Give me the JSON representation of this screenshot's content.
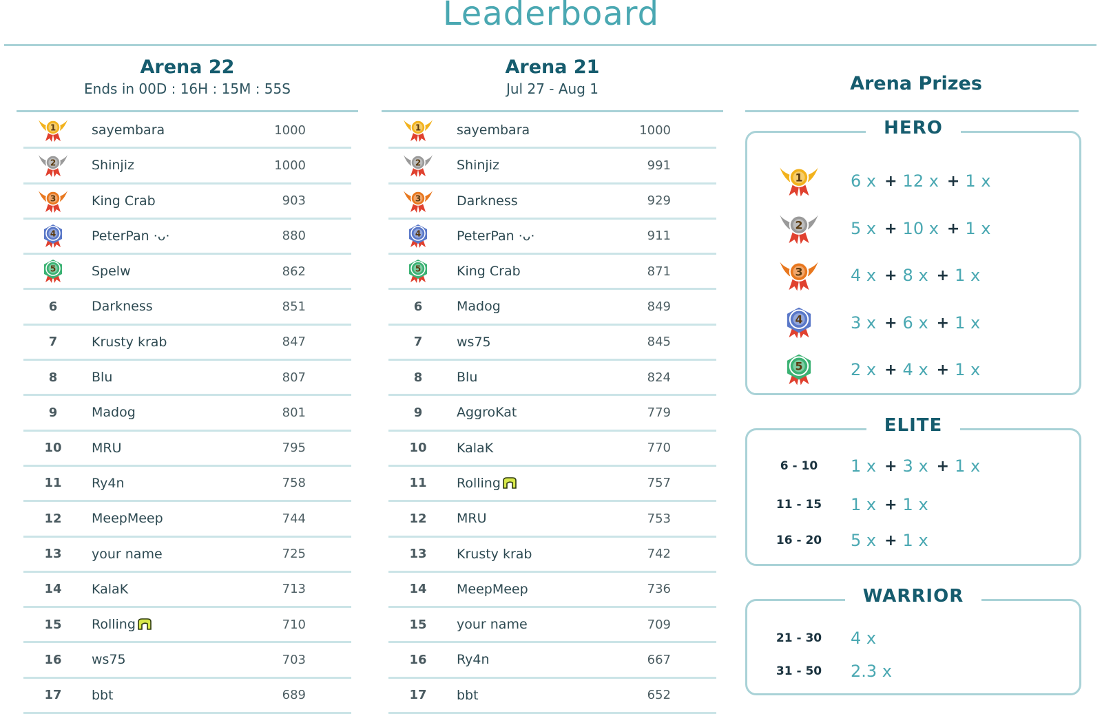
{
  "title": "Leaderboard",
  "arena_current": {
    "title": "Arena 22",
    "subtitle": "Ends in 00D : 16H : 15M : 55S",
    "rows": [
      {
        "rank": "1",
        "name": "sayembara",
        "score": "1000",
        "medal": "gold-medal"
      },
      {
        "rank": "2",
        "name": "Shinjiz",
        "score": "1000",
        "medal": "silver-medal"
      },
      {
        "rank": "3",
        "name": "King Crab",
        "score": "903",
        "medal": "bronze-medal"
      },
      {
        "rank": "4",
        "name": "PeterPan ·ᴗ·",
        "score": "880",
        "medal": "blue-medal"
      },
      {
        "rank": "5",
        "name": "Spelw",
        "score": "862",
        "medal": "green-medal"
      },
      {
        "rank": "6",
        "name": "Darkness",
        "score": "851"
      },
      {
        "rank": "7",
        "name": "Krusty krab",
        "score": "847"
      },
      {
        "rank": "8",
        "name": "Blu",
        "score": "807"
      },
      {
        "rank": "9",
        "name": "Madog",
        "score": "801"
      },
      {
        "rank": "10",
        "name": "MRU",
        "score": "795"
      },
      {
        "rank": "11",
        "name": "Ry4n",
        "score": "758"
      },
      {
        "rank": "12",
        "name": "MeepMeep",
        "score": "744"
      },
      {
        "rank": "13",
        "name": "your name",
        "score": "725"
      },
      {
        "rank": "14",
        "name": "KalaK",
        "score": "713"
      },
      {
        "rank": "15",
        "name": "Rolling",
        "score": "710",
        "mark": true
      },
      {
        "rank": "16",
        "name": "ws75",
        "score": "703"
      },
      {
        "rank": "17",
        "name": "bbt",
        "score": "689"
      }
    ]
  },
  "arena_previous": {
    "title": "Arena 21",
    "subtitle": "Jul 27 - Aug 1",
    "rows": [
      {
        "rank": "1",
        "name": "sayembara",
        "score": "1000",
        "medal": "gold-medal"
      },
      {
        "rank": "2",
        "name": "Shinjiz",
        "score": "991",
        "medal": "silver-medal"
      },
      {
        "rank": "3",
        "name": "Darkness",
        "score": "929",
        "medal": "bronze-medal"
      },
      {
        "rank": "4",
        "name": "PeterPan ·ᴗ·",
        "score": "911",
        "medal": "blue-medal"
      },
      {
        "rank": "5",
        "name": "King Crab",
        "score": "871",
        "medal": "green-medal"
      },
      {
        "rank": "6",
        "name": "Madog",
        "score": "849"
      },
      {
        "rank": "7",
        "name": "ws75",
        "score": "845"
      },
      {
        "rank": "8",
        "name": "Blu",
        "score": "824"
      },
      {
        "rank": "9",
        "name": "AggroKat",
        "score": "779"
      },
      {
        "rank": "10",
        "name": "KalaK",
        "score": "770"
      },
      {
        "rank": "11",
        "name": "Rolling",
        "score": "757",
        "mark": true
      },
      {
        "rank": "12",
        "name": "MRU",
        "score": "753"
      },
      {
        "rank": "13",
        "name": "Krusty krab",
        "score": "742"
      },
      {
        "rank": "14",
        "name": "MeepMeep",
        "score": "736"
      },
      {
        "rank": "15",
        "name": "your name",
        "score": "709"
      },
      {
        "rank": "16",
        "name": "Ry4n",
        "score": "667"
      },
      {
        "rank": "17",
        "name": "bbt",
        "score": "652"
      }
    ]
  },
  "prizes": {
    "title": "Arena Prizes",
    "tiers": [
      {
        "name": "HERO",
        "rows": [
          {
            "medal": "gold-medal",
            "items": [
              {
                "count": "6 x",
                "icon": "orb-icon"
              },
              {
                "count": "12 x",
                "icon": "gem-icon"
              },
              {
                "count": "1 x",
                "icon": "coin-icon"
              }
            ]
          },
          {
            "medal": "silver-medal",
            "items": [
              {
                "count": "5 x",
                "icon": "orb-icon"
              },
              {
                "count": "10 x",
                "icon": "gem-icon"
              },
              {
                "count": "1 x",
                "icon": "coin-icon"
              }
            ]
          },
          {
            "medal": "bronze-medal",
            "items": [
              {
                "count": "4 x",
                "icon": "orb-icon"
              },
              {
                "count": "8 x",
                "icon": "gem-icon"
              },
              {
                "count": "1 x",
                "icon": "coin-icon"
              }
            ]
          },
          {
            "medal": "blue-medal",
            "items": [
              {
                "count": "3 x",
                "icon": "orb-icon"
              },
              {
                "count": "6 x",
                "icon": "gem-icon"
              },
              {
                "count": "1 x",
                "icon": "coin-icon"
              }
            ]
          },
          {
            "medal": "green-medal",
            "items": [
              {
                "count": "2 x",
                "icon": "orb-icon"
              },
              {
                "count": "4 x",
                "icon": "gem-icon"
              },
              {
                "count": "1 x",
                "icon": "coin-icon"
              }
            ]
          }
        ]
      },
      {
        "name": "ELITE",
        "rows": [
          {
            "label": "6 - 10",
            "items": [
              {
                "count": "1 x",
                "icon": "orb-icon"
              },
              {
                "count": "3 x",
                "icon": "gem-icon"
              },
              {
                "count": "1 x",
                "icon": "coin-icon"
              }
            ]
          },
          {
            "label": "11 - 15",
            "items": [
              {
                "count": "1 x",
                "icon": "orb-icon"
              },
              {
                "count": "1 x",
                "icon": "coin-icon"
              }
            ]
          },
          {
            "label": "16 - 20",
            "items": [
              {
                "count": "5 x",
                "icon": "gem-icon"
              },
              {
                "count": "1 x",
                "icon": "coin-icon"
              }
            ]
          }
        ]
      },
      {
        "name": "WARRIOR",
        "rows": [
          {
            "label": "21 - 30",
            "items": [
              {
                "count": "4 x",
                "icon": "gem-icon"
              }
            ]
          },
          {
            "label": "31 - 50",
            "items": [
              {
                "count": "2.3 x",
                "icon": "gem-icon"
              }
            ]
          }
        ]
      }
    ]
  },
  "colors": {
    "accent": "#4aa8b2",
    "heading": "#165c6e",
    "rule": "#a9d2d7",
    "row_rule": "#cbe4e7",
    "medal_gold": "#f2b21c",
    "medal_silver": "#9a9a9a",
    "medal_bronze": "#e8771e",
    "medal_blue": "#5a78c8",
    "medal_green": "#3bb273",
    "ribbon": "#e0412f"
  }
}
